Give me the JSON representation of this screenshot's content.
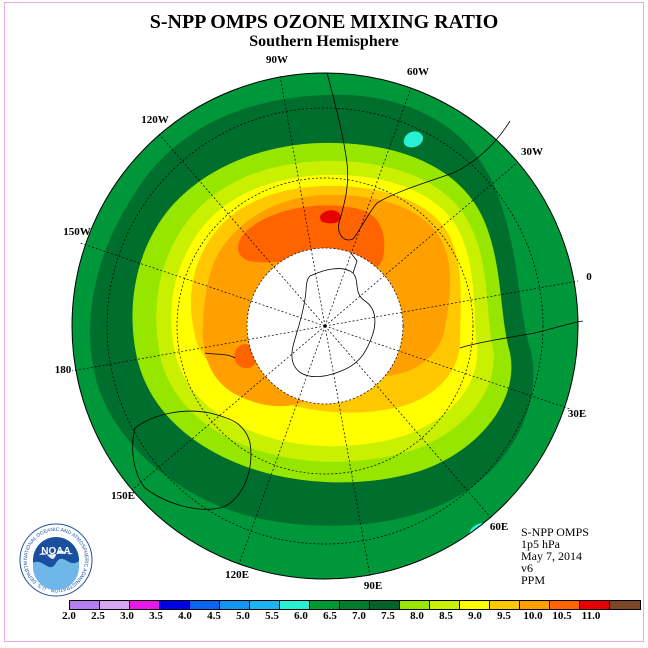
{
  "title": "S-NPP OMPS OZONE MIXING RATIO",
  "subtitle": "Southern Hemisphere",
  "longitude_labels": {
    "lon_90w": "90W",
    "lon_60w": "60W",
    "lon_30w": "30W",
    "lon_120w": "120W",
    "lon_150w": "150W",
    "lon_0": "0",
    "lon_180": "180",
    "lon_30e": "30E",
    "lon_150e": "150E",
    "lon_60e": "60E",
    "lon_120e": "120E",
    "lon_90e": "90E"
  },
  "info": {
    "instrument": "S-NPP OMPS",
    "pressure": "1p5 hPa",
    "date": "May 7, 2014",
    "version": "v6",
    "units": "PPM"
  },
  "logo": {
    "text": "NOAA",
    "ring_text": "NATIONAL OCEANIC AND ATMOSPHERIC ADMINISTRATION · U.S. DEPARTMENT OF COMMERCE"
  },
  "colorbar": {
    "ticks": [
      "2.0",
      "2.5",
      "3.0",
      "3.5",
      "4.0",
      "4.5",
      "5.0",
      "5.5",
      "6.0",
      "6.5",
      "7.0",
      "7.5",
      "8.0",
      "8.5",
      "9.0",
      "9.5",
      "10.0",
      "10.5",
      "11.0"
    ],
    "colors": [
      "#b57ef0",
      "#d9a6f2",
      "#e619e6",
      "#0000e6",
      "#0a64f0",
      "#1496f0",
      "#1eb4f0",
      "#28f0d2",
      "#009632",
      "#007a2c",
      "#006428",
      "#96e600",
      "#c8f000",
      "#ffff00",
      "#ffc800",
      "#ffa000",
      "#ff6400",
      "#e60000",
      "#7a4628"
    ]
  },
  "map_colors": {
    "outer_green": "#00963a",
    "dark_green": "#006e2c",
    "light_green": "#96e600",
    "yellow_green": "#c8f000",
    "yellow": "#ffff00",
    "gold": "#ffc800",
    "orange": "#ffa000",
    "dark_orange": "#ff6400",
    "red": "#e60000",
    "cyan": "#28f0d2"
  }
}
